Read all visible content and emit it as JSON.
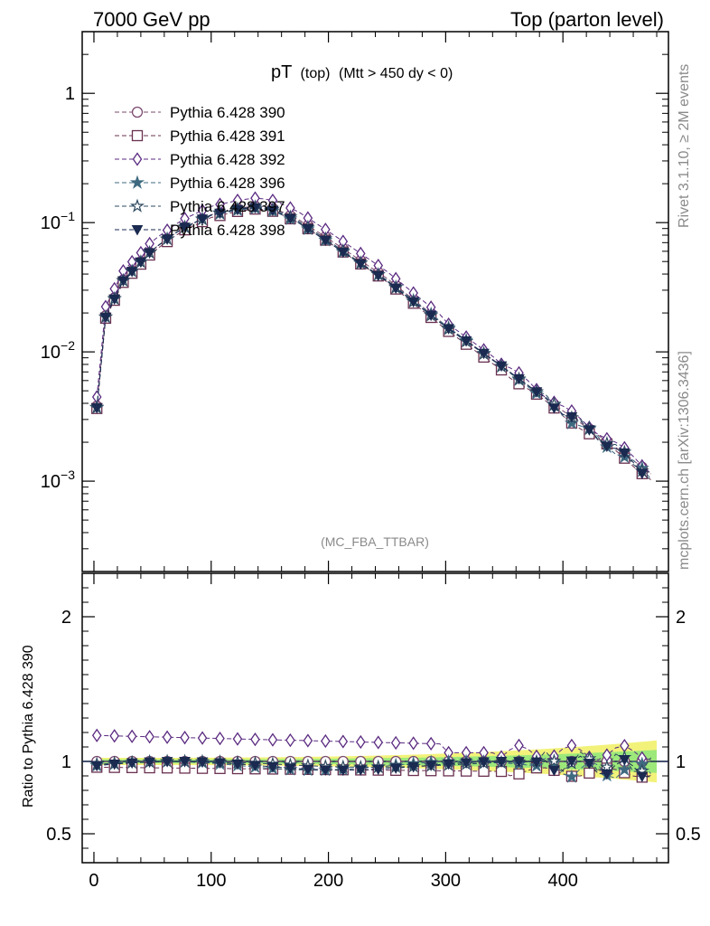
{
  "header": {
    "left": "7000 GeV pp",
    "right": "Top (parton level)"
  },
  "side": {
    "rivet": "Rivet 3.1.10, ≥ 2M events",
    "mcplots": "mcplots.cern.ch [arXiv:1306.3436]"
  },
  "plot_title": {
    "main": "pT",
    "sub1": "(top)",
    "sub2": "(Mtt > 450 dy < 0)"
  },
  "analysis_tag": "(MC_FBA_TTBAR)",
  "ratio_ylabel": "Ratio to Pythia 6.428 390",
  "colors": {
    "s390": "#7a4a6e",
    "s391": "#6a3050",
    "s392": "#5a2a80",
    "s396": "#3f6a80",
    "s397": "#2f4a60",
    "s398": "#1a2a50",
    "band_yellow": "#f2f27a",
    "band_green": "#9de87a"
  },
  "chart_data": {
    "type": "line",
    "xlim": [
      -10,
      490
    ],
    "main_ylim": [
      0.0002,
      3
    ],
    "main_yscale": "log",
    "ratio_ylim": [
      0.3,
      2.3
    ],
    "x_ticks": [
      "0",
      "100",
      "200",
      "300",
      "400"
    ],
    "main_y_ticks": [
      "10^-3",
      "10^-2",
      "10^-1",
      "1"
    ],
    "ratio_y_ticks": [
      "0.5",
      "1",
      "2"
    ],
    "reference_curve": {
      "x": [
        2.5,
        10,
        25,
        50,
        75,
        100,
        125,
        140,
        155,
        175,
        200,
        250,
        300,
        350,
        400,
        450,
        477
      ],
      "y": [
        0.0038,
        0.019,
        0.036,
        0.062,
        0.09,
        0.115,
        0.13,
        0.135,
        0.128,
        0.105,
        0.075,
        0.037,
        0.016,
        0.0075,
        0.0035,
        0.0017,
        0.0011
      ]
    },
    "series": [
      {
        "name": "Pythia 6.428 390",
        "marker": "circle-open",
        "color": "#7a4a6e",
        "scale": 1.0
      },
      {
        "name": "Pythia 6.428 391",
        "marker": "square-open",
        "color": "#6a3050",
        "scale": 0.96
      },
      {
        "name": "Pythia 6.428 392",
        "marker": "diamond-open",
        "color": "#5a2a80",
        "scale": 1.18
      },
      {
        "name": "Pythia 6.428 396",
        "marker": "star-filled",
        "color": "#3f6a80",
        "scale": 1.0
      },
      {
        "name": "Pythia 6.428 397",
        "marker": "star-open",
        "color": "#2f4a60",
        "scale": 1.0
      },
      {
        "name": "Pythia 6.428 398",
        "marker": "triangle-down-filled",
        "color": "#1a2a50",
        "scale": 0.99
      }
    ]
  }
}
